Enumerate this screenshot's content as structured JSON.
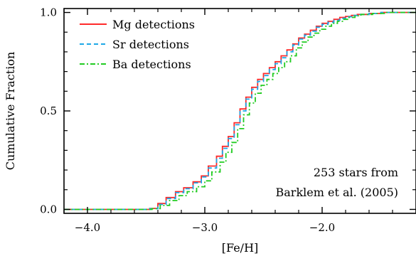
{
  "chart_data": {
    "type": "line",
    "title": "",
    "xlabel": "[Fe/H]",
    "ylabel": "Cumulative Fraction",
    "xlim": [
      -4.2,
      -1.2
    ],
    "ylim": [
      -0.02,
      1.02
    ],
    "x_ticks": [
      -4.0,
      -3.0,
      -2.0
    ],
    "x_tick_labels": [
      "−4.0",
      "−3.0",
      "−2.0"
    ],
    "y_ticks": [
      0.0,
      0.5,
      1.0
    ],
    "y_tick_labels": [
      "0.0",
      "0.5",
      "1.0"
    ],
    "grid": false,
    "legend_position": "top-left",
    "annotation": {
      "line1": "253 stars from",
      "line2": "Barklem et al. (2005)"
    },
    "series": [
      {
        "name": "Mg detections",
        "color": "#ff2a2a",
        "dash": "solid",
        "x": [
          -4.2,
          -3.75,
          -3.47,
          -3.4,
          -3.33,
          -3.25,
          -3.18,
          -3.1,
          -3.03,
          -2.97,
          -2.9,
          -2.85,
          -2.8,
          -2.75,
          -2.7,
          -2.65,
          -2.6,
          -2.55,
          -2.5,
          -2.45,
          -2.4,
          -2.35,
          -2.3,
          -2.25,
          -2.2,
          -2.15,
          -2.1,
          -2.05,
          -2.0,
          -1.95,
          -1.9,
          -1.85,
          -1.8,
          -1.75,
          -1.7,
          -1.6,
          -1.5,
          -1.4,
          -1.2
        ],
        "y": [
          0.0,
          0.0,
          0.005,
          0.03,
          0.06,
          0.09,
          0.11,
          0.14,
          0.17,
          0.22,
          0.27,
          0.32,
          0.37,
          0.44,
          0.51,
          0.57,
          0.62,
          0.66,
          0.69,
          0.72,
          0.75,
          0.78,
          0.81,
          0.84,
          0.87,
          0.89,
          0.91,
          0.93,
          0.945,
          0.955,
          0.965,
          0.975,
          0.98,
          0.985,
          0.99,
          0.995,
          1.0,
          1.0,
          1.0
        ]
      },
      {
        "name": "Sr detections",
        "color": "#1ea8e6",
        "dash": "dashed",
        "x": [
          -4.2,
          -3.75,
          -3.47,
          -3.4,
          -3.33,
          -3.25,
          -3.18,
          -3.1,
          -3.03,
          -2.97,
          -2.9,
          -2.85,
          -2.8,
          -2.75,
          -2.7,
          -2.65,
          -2.6,
          -2.55,
          -2.5,
          -2.45,
          -2.4,
          -2.35,
          -2.3,
          -2.25,
          -2.2,
          -2.15,
          -2.1,
          -2.05,
          -2.0,
          -1.95,
          -1.9,
          -1.85,
          -1.8,
          -1.75,
          -1.7,
          -1.6,
          -1.5,
          -1.4,
          -1.2
        ],
        "y": [
          0.0,
          0.0,
          0.004,
          0.025,
          0.055,
          0.085,
          0.105,
          0.135,
          0.165,
          0.21,
          0.26,
          0.31,
          0.36,
          0.43,
          0.5,
          0.56,
          0.61,
          0.65,
          0.68,
          0.71,
          0.74,
          0.77,
          0.8,
          0.835,
          0.865,
          0.885,
          0.905,
          0.925,
          0.94,
          0.95,
          0.96,
          0.97,
          0.978,
          0.985,
          0.99,
          0.995,
          1.0,
          1.0,
          1.0
        ]
      },
      {
        "name": "Ba detections",
        "color": "#22cc22",
        "dash": "dashdot",
        "x": [
          -4.2,
          -3.75,
          -3.45,
          -3.38,
          -3.3,
          -3.22,
          -3.15,
          -3.07,
          -3.0,
          -2.94,
          -2.87,
          -2.82,
          -2.77,
          -2.72,
          -2.67,
          -2.62,
          -2.57,
          -2.52,
          -2.47,
          -2.42,
          -2.37,
          -2.32,
          -2.27,
          -2.22,
          -2.17,
          -2.12,
          -2.07,
          -2.02,
          -1.97,
          -1.92,
          -1.87,
          -1.82,
          -1.77,
          -1.72,
          -1.67,
          -1.57,
          -1.47,
          -1.4,
          -1.2
        ],
        "y": [
          0.0,
          0.0,
          0.004,
          0.02,
          0.045,
          0.07,
          0.09,
          0.115,
          0.145,
          0.19,
          0.24,
          0.29,
          0.34,
          0.41,
          0.48,
          0.54,
          0.59,
          0.63,
          0.66,
          0.69,
          0.72,
          0.75,
          0.78,
          0.82,
          0.85,
          0.875,
          0.895,
          0.915,
          0.93,
          0.945,
          0.955,
          0.965,
          0.975,
          0.983,
          0.99,
          0.995,
          1.0,
          1.0,
          1.0
        ]
      }
    ]
  }
}
